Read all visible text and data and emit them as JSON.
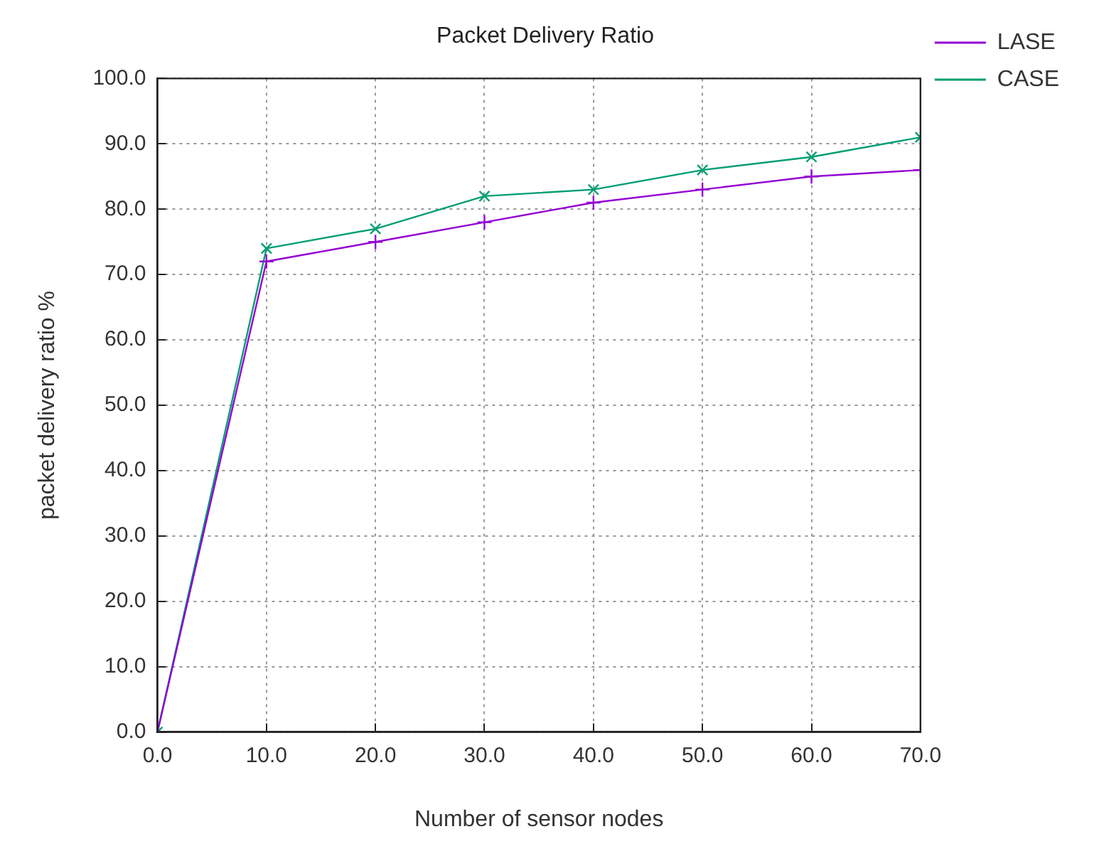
{
  "chart_data": {
    "type": "line",
    "title": "Packet Delivery Ratio",
    "xlabel": "Number of sensor nodes",
    "ylabel": "packet delivery ratio %",
    "x": [
      0,
      10,
      20,
      30,
      40,
      50,
      60,
      70
    ],
    "series": [
      {
        "name": "LASE",
        "color": "#9400d3",
        "values": [
          0,
          72,
          75,
          78,
          81,
          83,
          85,
          86
        ]
      },
      {
        "name": "CASE",
        "color": "#009e73",
        "values": [
          0,
          74,
          77,
          82,
          83,
          86,
          88,
          91
        ]
      }
    ],
    "xlim": [
      0,
      70
    ],
    "xticks": [
      {
        "value": 0,
        "label": "0.0"
      },
      {
        "value": 10,
        "label": "10.0"
      },
      {
        "value": 20,
        "label": "20.0"
      },
      {
        "value": 30,
        "label": "30.0"
      },
      {
        "value": 40,
        "label": "40.0"
      },
      {
        "value": 50,
        "label": "50.0"
      },
      {
        "value": 60,
        "label": "60.0"
      },
      {
        "value": 70,
        "label": "70.0"
      }
    ],
    "ylim": [
      0,
      100
    ],
    "yticks": [
      {
        "value": 0,
        "label": "0.0"
      },
      {
        "value": 10,
        "label": "10.0"
      },
      {
        "value": 20,
        "label": "20.0"
      },
      {
        "value": 30,
        "label": "30.0"
      },
      {
        "value": 40,
        "label": "40.0"
      },
      {
        "value": 50,
        "label": "50.0"
      },
      {
        "value": 60,
        "label": "60.0"
      },
      {
        "value": 70,
        "label": "70.0"
      },
      {
        "value": 80,
        "label": "80.0"
      },
      {
        "value": 90,
        "label": "90.0"
      },
      {
        "value": 100,
        "label": "100.0"
      }
    ],
    "grid": true,
    "legend": "top right",
    "marker": "cross",
    "line_style": "solid"
  }
}
